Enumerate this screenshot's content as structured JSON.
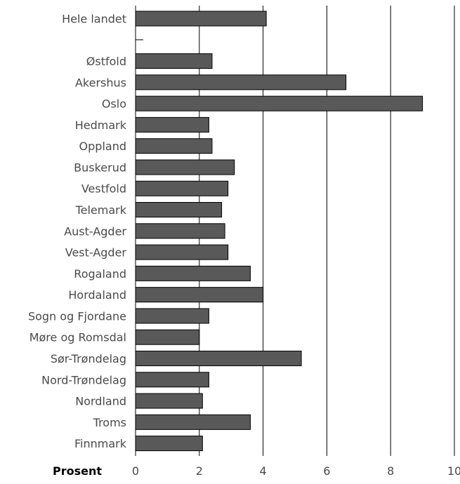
{
  "chart_data": {
    "type": "bar",
    "orientation": "horizontal",
    "categories": [
      "Hele landet",
      "",
      "Østfold",
      "Akershus",
      "Oslo",
      "Hedmark",
      "Oppland",
      "Buskerud",
      "Vestfold",
      "Telemark",
      "Aust-Agder",
      "Vest-Agder",
      "Rogaland",
      "Hordaland",
      "Sogn og Fjordane",
      "Møre og Romsdal",
      "Sør-Trøndelag",
      "Nord-Trøndelag",
      "Nordland",
      "Troms",
      "Finnmark"
    ],
    "values": [
      4.1,
      null,
      2.4,
      6.6,
      9.0,
      2.3,
      2.4,
      3.1,
      2.9,
      2.7,
      2.8,
      2.9,
      3.6,
      4.0,
      2.3,
      2.0,
      5.2,
      2.3,
      2.1,
      3.6,
      2.1
    ],
    "xlabel": "Prosent",
    "xlim": [
      0,
      10
    ],
    "xticks": [
      0,
      2,
      4,
      6,
      8,
      10
    ],
    "grid": "vertical",
    "colors": {
      "bar": "#595959",
      "bar_stroke": "#000000",
      "grid": "#000000",
      "text": "#4a4a4a"
    }
  }
}
